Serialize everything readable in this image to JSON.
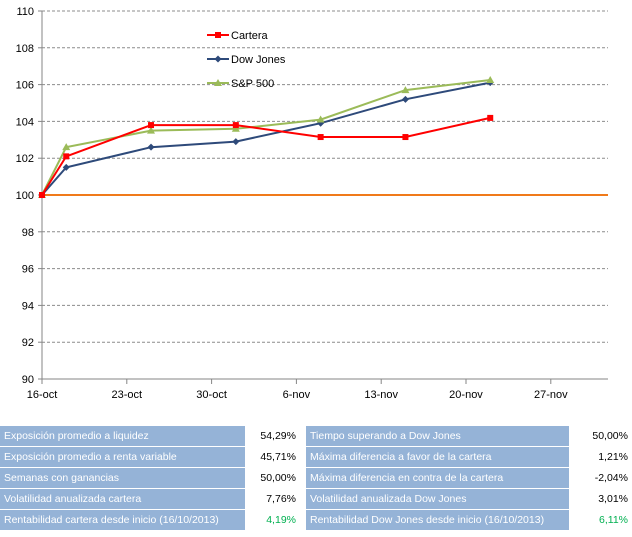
{
  "chart_data": {
    "type": "line",
    "x": [
      "16-oct",
      "18-oct",
      "25-oct",
      "1-nov",
      "8-nov",
      "15-nov",
      "22-nov"
    ],
    "x_ticks": [
      "16-oct",
      "23-oct",
      "30-oct",
      "6-nov",
      "13-nov",
      "20-nov",
      "27-nov"
    ],
    "ylim": [
      90,
      110
    ],
    "yticks": [
      90,
      92,
      94,
      96,
      98,
      100,
      102,
      104,
      106,
      108,
      110
    ],
    "grid": true,
    "legend": "top-center",
    "reference_line": {
      "y": 100,
      "color": "#f07a1a"
    },
    "series": [
      {
        "name": "Cartera",
        "color": "#ff0000",
        "marker": "square",
        "values": [
          100,
          102.1,
          103.8,
          103.8,
          103.15,
          103.15,
          104.19
        ]
      },
      {
        "name": "Dow Jones",
        "color": "#2e4a7a",
        "marker": "diamond",
        "values": [
          100,
          101.5,
          102.6,
          102.9,
          103.9,
          105.2,
          106.11
        ]
      },
      {
        "name": "S&P 500",
        "color": "#9bbb59",
        "marker": "triangle",
        "values": [
          100,
          102.6,
          103.5,
          103.6,
          104.1,
          105.7,
          106.25
        ]
      }
    ]
  },
  "stats": {
    "left": [
      {
        "label": "Exposición promedio a liquidez",
        "value": "54,29%"
      },
      {
        "label": "Exposición promedio a renta variable",
        "value": "45,71%"
      },
      {
        "label": "Semanas con ganancias",
        "value": "50,00%"
      },
      {
        "label": "Volatilidad anualizada cartera",
        "value": "7,76%"
      },
      {
        "label": "Rentabilidad cartera desde inicio (16/10/2013)",
        "value": "4,19%"
      }
    ],
    "right": [
      {
        "label": "Tiempo superando a Dow Jones",
        "value": "50,00%"
      },
      {
        "label": "Máxima diferencia a favor de la cartera",
        "value": "1,21%"
      },
      {
        "label": "Máxima diferencia en contra de la cartera",
        "value": "-2,04%"
      },
      {
        "label": "Volatilidad anualizada Dow Jones",
        "value": "3,01%"
      },
      {
        "label": "Rentabilidad Dow Jones desde inicio (16/10/2013)",
        "value": "6,11%"
      }
    ]
  }
}
